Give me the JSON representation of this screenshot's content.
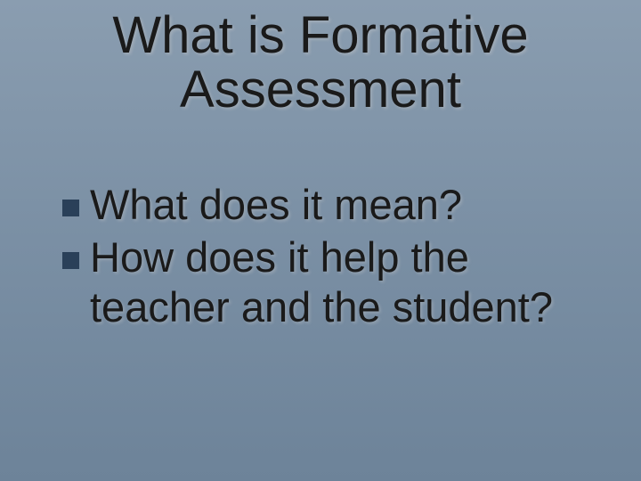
{
  "slide": {
    "title": "What is Formative\nAssessment",
    "bullets": [
      {
        "text": "What does it mean?"
      },
      {
        "text": "How does it help the teacher and the student?"
      }
    ]
  },
  "style": {
    "background_gradient": [
      "#8a9db0",
      "#7a8fa4",
      "#6d8399"
    ],
    "title_fontsize": 58,
    "title_color": "#1a1a1a",
    "body_fontsize": 47,
    "body_color": "#1a1a1a",
    "bullet_marker_color": "#2a4059",
    "bullet_marker_size": 19,
    "font_family": "Tahoma"
  }
}
